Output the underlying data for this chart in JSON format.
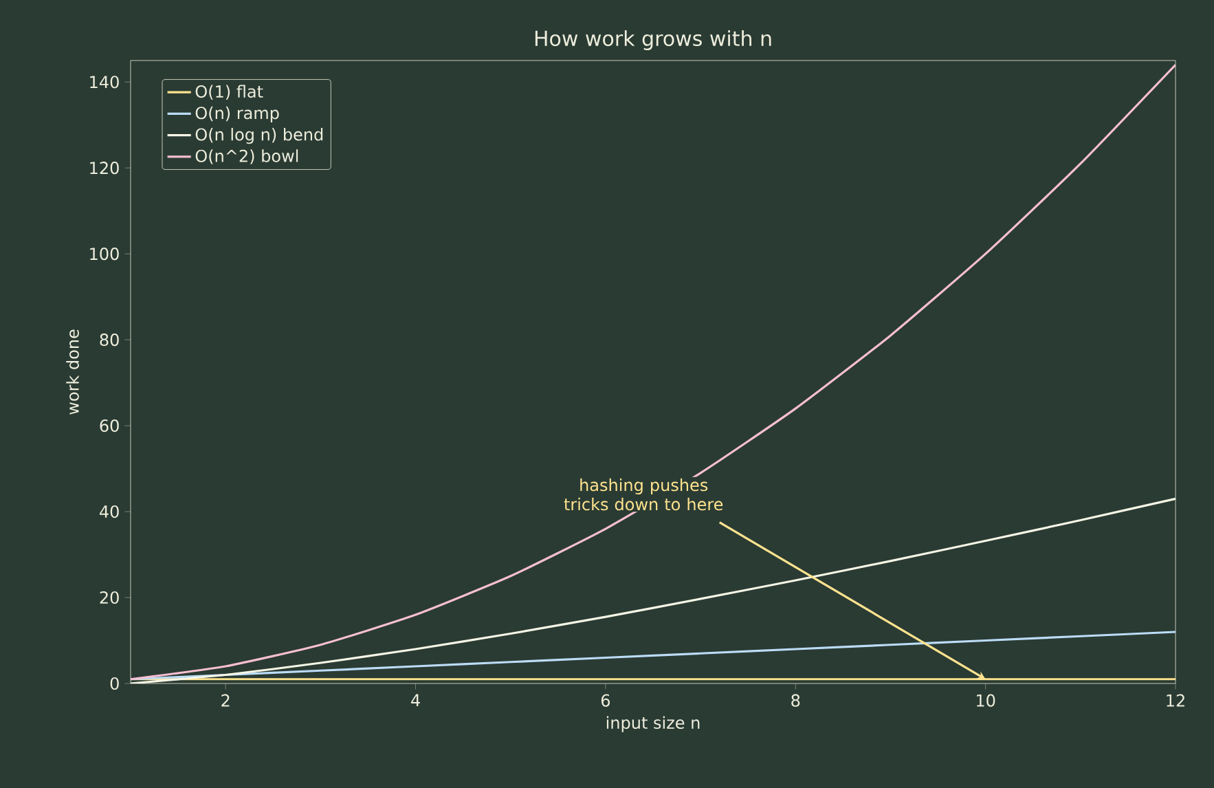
{
  "chart_data": {
    "type": "line",
    "title": "How work grows with n",
    "xlabel": "input size n",
    "ylabel": "work done",
    "x": [
      1,
      2,
      3,
      4,
      5,
      6,
      7,
      8,
      9,
      10,
      11,
      12
    ],
    "series": [
      {
        "name": "O(1) flat",
        "color": "#ffe38f",
        "values": [
          1,
          1,
          1,
          1,
          1,
          1,
          1,
          1,
          1,
          1,
          1,
          1
        ]
      },
      {
        "name": "O(n) ramp",
        "color": "#bcdcf7",
        "values": [
          1,
          2,
          3,
          4,
          5,
          6,
          7,
          8,
          9,
          10,
          11,
          12
        ]
      },
      {
        "name": "O(n log n) bend",
        "color": "#f6f6e6",
        "values": [
          0,
          2,
          4.8,
          8,
          11.6,
          15.5,
          19.7,
          24,
          28.5,
          33.2,
          38,
          43
        ]
      },
      {
        "name": "O(n^2) bowl",
        "color": "#f8bfd2",
        "values": [
          1,
          4,
          9,
          16,
          25,
          36,
          49,
          64,
          81,
          100,
          121,
          144
        ]
      }
    ],
    "xlim": [
      1,
      12
    ],
    "xticks": [
      2,
      4,
      6,
      8,
      10,
      12
    ],
    "ylim": [
      0,
      145
    ],
    "yticks": [
      0,
      20,
      40,
      60,
      80,
      100,
      120,
      140
    ],
    "grid": false,
    "legend": "top left",
    "marker": "none",
    "line_style": "solid",
    "annotations": [
      {
        "text": "hashing pushes tricks down to here",
        "x": 10,
        "y": 1
      }
    ]
  }
}
